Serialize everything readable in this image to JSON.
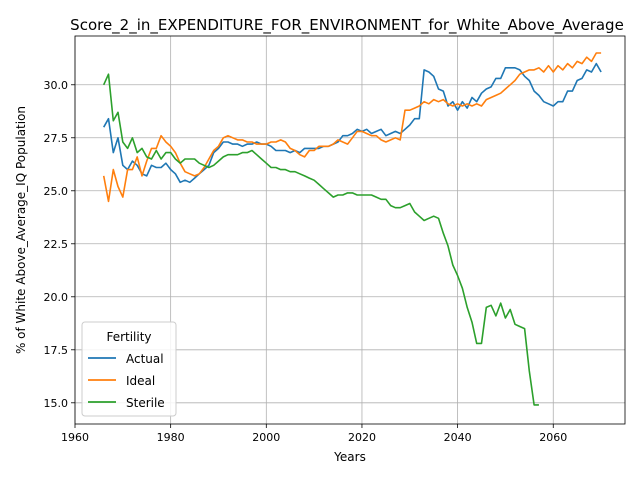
{
  "chart_data": {
    "type": "line",
    "title": "Score_2_in_EXPENDITURE_FOR_ENVIRONMENT_for_White_Above_Average",
    "xlabel": "Years",
    "ylabel": "% of White Above_Average_IQ Population",
    "xlim": [
      1960,
      2075
    ],
    "ylim": [
      14.0,
      32.3
    ],
    "xticks": [
      1960,
      1980,
      2000,
      2020,
      2040,
      2060
    ],
    "xtick_labels": [
      "1960",
      "1980",
      "2000",
      "2020",
      "2040",
      "2060"
    ],
    "yticks": [
      15.0,
      17.5,
      20.0,
      22.5,
      25.0,
      27.5,
      30.0
    ],
    "ytick_labels": [
      "15.0",
      "17.5",
      "20.0",
      "22.5",
      "25.0",
      "27.5",
      "30.0"
    ],
    "grid": true,
    "legend": {
      "title": "Fertility",
      "position": "lower-left"
    },
    "series": [
      {
        "name": "Actual",
        "color": "#1f77b4",
        "x": [
          1966,
          1967,
          1968,
          1969,
          1970,
          1971,
          1972,
          1973,
          1974,
          1975,
          1976,
          1977,
          1978,
          1979,
          1980,
          1981,
          1982,
          1983,
          1984,
          1985,
          1986,
          1987,
          1988,
          1989,
          1990,
          1991,
          1992,
          1993,
          1994,
          1995,
          1996,
          1997,
          1998,
          1999,
          2000,
          2001,
          2002,
          2003,
          2004,
          2005,
          2006,
          2007,
          2008,
          2009,
          2010,
          2011,
          2012,
          2013,
          2014,
          2015,
          2016,
          2017,
          2018,
          2019,
          2020,
          2021,
          2022,
          2023,
          2024,
          2025,
          2026,
          2027,
          2028,
          2029,
          2030,
          2031,
          2032,
          2033,
          2034,
          2035,
          2036,
          2037,
          2038,
          2039,
          2040,
          2041,
          2042,
          2043,
          2044,
          2045,
          2046,
          2047,
          2048,
          2049,
          2050,
          2051,
          2052,
          2053,
          2054,
          2055,
          2056,
          2057,
          2058,
          2059,
          2060,
          2061,
          2062,
          2063,
          2064,
          2065,
          2066,
          2067,
          2068,
          2069,
          2070
        ],
        "y": [
          28.0,
          28.4,
          26.8,
          27.5,
          26.2,
          26.0,
          26.4,
          26.2,
          25.8,
          25.7,
          26.2,
          26.1,
          26.1,
          26.3,
          26.0,
          25.8,
          25.4,
          25.5,
          25.4,
          25.6,
          25.8,
          26.0,
          26.2,
          26.8,
          27.0,
          27.3,
          27.3,
          27.2,
          27.2,
          27.1,
          27.2,
          27.2,
          27.3,
          27.2,
          27.2,
          27.1,
          26.9,
          26.9,
          26.9,
          26.8,
          26.9,
          26.8,
          27.0,
          27.0,
          27.0,
          27.0,
          27.1,
          27.1,
          27.2,
          27.3,
          27.6,
          27.6,
          27.7,
          27.9,
          27.8,
          27.9,
          27.7,
          27.8,
          27.9,
          27.6,
          27.7,
          27.8,
          27.7,
          27.9,
          28.1,
          28.4,
          28.4,
          30.7,
          30.6,
          30.4,
          29.8,
          29.7,
          29.0,
          29.2,
          28.8,
          29.2,
          28.9,
          29.4,
          29.2,
          29.6,
          29.8,
          29.9,
          30.3,
          30.3,
          30.8,
          30.8,
          30.8,
          30.7,
          30.4,
          30.2,
          29.7,
          29.5,
          29.2,
          29.1,
          29.0,
          29.2,
          29.2,
          29.7,
          29.7,
          30.2,
          30.3,
          30.7,
          30.6,
          31.0,
          30.6
        ]
      },
      {
        "name": "Ideal",
        "color": "#ff7f0e",
        "x": [
          1966,
          1967,
          1968,
          1969,
          1970,
          1971,
          1972,
          1973,
          1974,
          1975,
          1976,
          1977,
          1978,
          1979,
          1980,
          1981,
          1982,
          1983,
          1984,
          1985,
          1986,
          1987,
          1988,
          1989,
          1990,
          1991,
          1992,
          1993,
          1994,
          1995,
          1996,
          1997,
          1998,
          1999,
          2000,
          2001,
          2002,
          2003,
          2004,
          2005,
          2006,
          2007,
          2008,
          2009,
          2010,
          2011,
          2012,
          2013,
          2014,
          2015,
          2016,
          2017,
          2018,
          2019,
          2020,
          2021,
          2022,
          2023,
          2024,
          2025,
          2026,
          2027,
          2028,
          2029,
          2030,
          2031,
          2032,
          2033,
          2034,
          2035,
          2036,
          2037,
          2038,
          2039,
          2040,
          2041,
          2042,
          2043,
          2044,
          2045,
          2046,
          2047,
          2048,
          2049,
          2050,
          2051,
          2052,
          2053,
          2054,
          2055,
          2056,
          2057,
          2058,
          2059,
          2060,
          2061,
          2062,
          2063,
          2064,
          2065,
          2066,
          2067,
          2068,
          2069,
          2070
        ],
        "y": [
          25.7,
          24.5,
          26.0,
          25.2,
          24.7,
          26.0,
          26.0,
          26.6,
          25.7,
          26.4,
          27.0,
          27.0,
          27.6,
          27.3,
          27.1,
          26.8,
          26.3,
          25.9,
          25.8,
          25.7,
          25.8,
          26.1,
          26.5,
          26.9,
          27.1,
          27.5,
          27.6,
          27.5,
          27.4,
          27.4,
          27.3,
          27.3,
          27.2,
          27.2,
          27.2,
          27.3,
          27.3,
          27.4,
          27.3,
          27.0,
          26.9,
          26.7,
          26.6,
          26.9,
          26.9,
          27.1,
          27.1,
          27.1,
          27.2,
          27.4,
          27.3,
          27.2,
          27.5,
          27.8,
          27.8,
          27.7,
          27.6,
          27.6,
          27.4,
          27.3,
          27.4,
          27.5,
          27.4,
          28.8,
          28.8,
          28.9,
          29.0,
          29.2,
          29.1,
          29.3,
          29.2,
          29.3,
          29.1,
          29.0,
          29.1,
          29.0,
          29.1,
          29.0,
          29.1,
          29.0,
          29.3,
          29.4,
          29.5,
          29.6,
          29.8,
          30.0,
          30.2,
          30.5,
          30.6,
          30.7,
          30.7,
          30.8,
          30.6,
          30.9,
          30.6,
          30.9,
          30.7,
          31.0,
          30.8,
          31.1,
          31.0,
          31.3,
          31.1,
          31.5,
          31.5
        ]
      },
      {
        "name": "Sterile",
        "color": "#2ca02c",
        "x": [
          1966,
          1967,
          1968,
          1969,
          1970,
          1971,
          1972,
          1973,
          1974,
          1975,
          1976,
          1977,
          1978,
          1979,
          1980,
          1981,
          1982,
          1983,
          1984,
          1985,
          1986,
          1987,
          1988,
          1989,
          1990,
          1991,
          1992,
          1993,
          1994,
          1995,
          1996,
          1997,
          1998,
          1999,
          2000,
          2001,
          2002,
          2003,
          2004,
          2005,
          2006,
          2007,
          2008,
          2009,
          2010,
          2011,
          2012,
          2013,
          2014,
          2015,
          2016,
          2017,
          2018,
          2019,
          2020,
          2021,
          2022,
          2023,
          2024,
          2025,
          2026,
          2027,
          2028,
          2029,
          2030,
          2031,
          2032,
          2033,
          2034,
          2035,
          2036,
          2037,
          2038,
          2039,
          2040,
          2041,
          2042,
          2043,
          2044,
          2045,
          2046,
          2047,
          2048,
          2049,
          2050,
          2051,
          2052,
          2053,
          2054,
          2055,
          2056,
          2057
        ],
        "y": [
          30.0,
          30.5,
          28.3,
          28.7,
          27.3,
          27.0,
          27.5,
          26.8,
          27.0,
          26.6,
          26.5,
          26.9,
          26.5,
          26.8,
          26.8,
          26.5,
          26.3,
          26.5,
          26.5,
          26.5,
          26.3,
          26.2,
          26.1,
          26.2,
          26.4,
          26.6,
          26.7,
          26.7,
          26.7,
          26.8,
          26.8,
          26.9,
          26.7,
          26.5,
          26.3,
          26.1,
          26.1,
          26.0,
          26.0,
          25.9,
          25.9,
          25.8,
          25.7,
          25.6,
          25.5,
          25.3,
          25.1,
          24.9,
          24.7,
          24.8,
          24.8,
          24.9,
          24.9,
          24.8,
          24.8,
          24.8,
          24.8,
          24.7,
          24.6,
          24.6,
          24.3,
          24.2,
          24.2,
          24.3,
          24.4,
          24.0,
          23.8,
          23.6,
          23.7,
          23.8,
          23.7,
          23.0,
          22.4,
          21.5,
          21.0,
          20.4,
          19.5,
          18.8,
          17.8,
          17.8,
          19.5,
          19.6,
          19.1,
          19.7,
          19.0,
          19.4,
          18.7,
          18.6,
          18.5,
          16.5,
          14.9,
          14.9
        ]
      }
    ]
  }
}
